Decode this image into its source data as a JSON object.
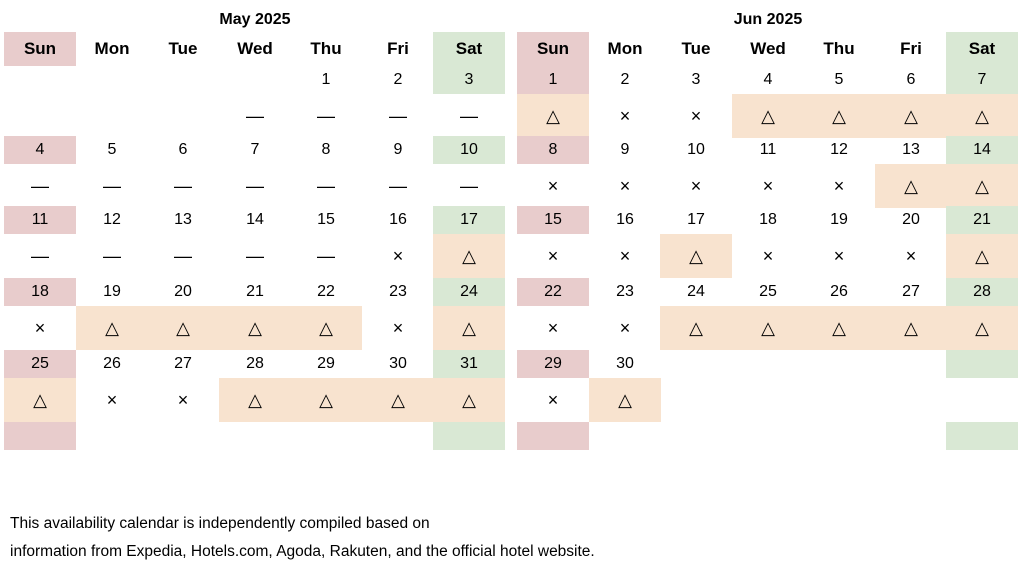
{
  "weekdays": [
    "Sun",
    "Mon",
    "Tue",
    "Wed",
    "Thu",
    "Fri",
    "Sat"
  ],
  "legend_symbols": {
    "unavailable": "—",
    "sold_out": "×",
    "limited": "△"
  },
  "colors": {
    "sunday": "#e8cccc",
    "saturday": "#d9e8d4",
    "limited": "#f8e3cf"
  },
  "months": [
    {
      "title": "May 2025",
      "weeks": [
        {
          "days": [
            "",
            "",
            "",
            "",
            "1",
            "2",
            "3"
          ],
          "status": [
            "",
            "",
            "",
            "—",
            "—",
            "—",
            "—"
          ]
        },
        {
          "days": [
            "4",
            "5",
            "6",
            "7",
            "8",
            "9",
            "10"
          ],
          "status": [
            "—",
            "—",
            "—",
            "—",
            "—",
            "—",
            "—"
          ]
        },
        {
          "days": [
            "11",
            "12",
            "13",
            "14",
            "15",
            "16",
            "17"
          ],
          "status": [
            "—",
            "—",
            "—",
            "—",
            "—",
            "×",
            "△"
          ]
        },
        {
          "days": [
            "18",
            "19",
            "20",
            "21",
            "22",
            "23",
            "24"
          ],
          "status": [
            "×",
            "△",
            "△",
            "△",
            "△",
            "×",
            "△"
          ]
        },
        {
          "days": [
            "25",
            "26",
            "27",
            "28",
            "29",
            "30",
            "31"
          ],
          "status": [
            "△",
            "×",
            "×",
            "△",
            "△",
            "△",
            "△"
          ]
        }
      ]
    },
    {
      "title": "Jun 2025",
      "weeks": [
        {
          "days": [
            "1",
            "2",
            "3",
            "4",
            "5",
            "6",
            "7"
          ],
          "status": [
            "△",
            "×",
            "×",
            "△",
            "△",
            "△",
            "△"
          ]
        },
        {
          "days": [
            "8",
            "9",
            "10",
            "11",
            "12",
            "13",
            "14"
          ],
          "status": [
            "×",
            "×",
            "×",
            "×",
            "×",
            "△",
            "△"
          ]
        },
        {
          "days": [
            "15",
            "16",
            "17",
            "18",
            "19",
            "20",
            "21"
          ],
          "status": [
            "×",
            "×",
            "△",
            "×",
            "×",
            "×",
            "△"
          ]
        },
        {
          "days": [
            "22",
            "23",
            "24",
            "25",
            "26",
            "27",
            "28"
          ],
          "status": [
            "×",
            "×",
            "△",
            "△",
            "△",
            "△",
            "△"
          ]
        },
        {
          "days": [
            "29",
            "30",
            "",
            "",
            "",
            "",
            ""
          ],
          "status": [
            "×",
            "△",
            "",
            "",
            "",
            "",
            ""
          ]
        }
      ]
    }
  ],
  "footnote": {
    "line1": "This availability calendar is independently compiled based on",
    "line2": "information from Expedia, Hotels.com, Agoda, Rakuten, and the official hotel website."
  }
}
